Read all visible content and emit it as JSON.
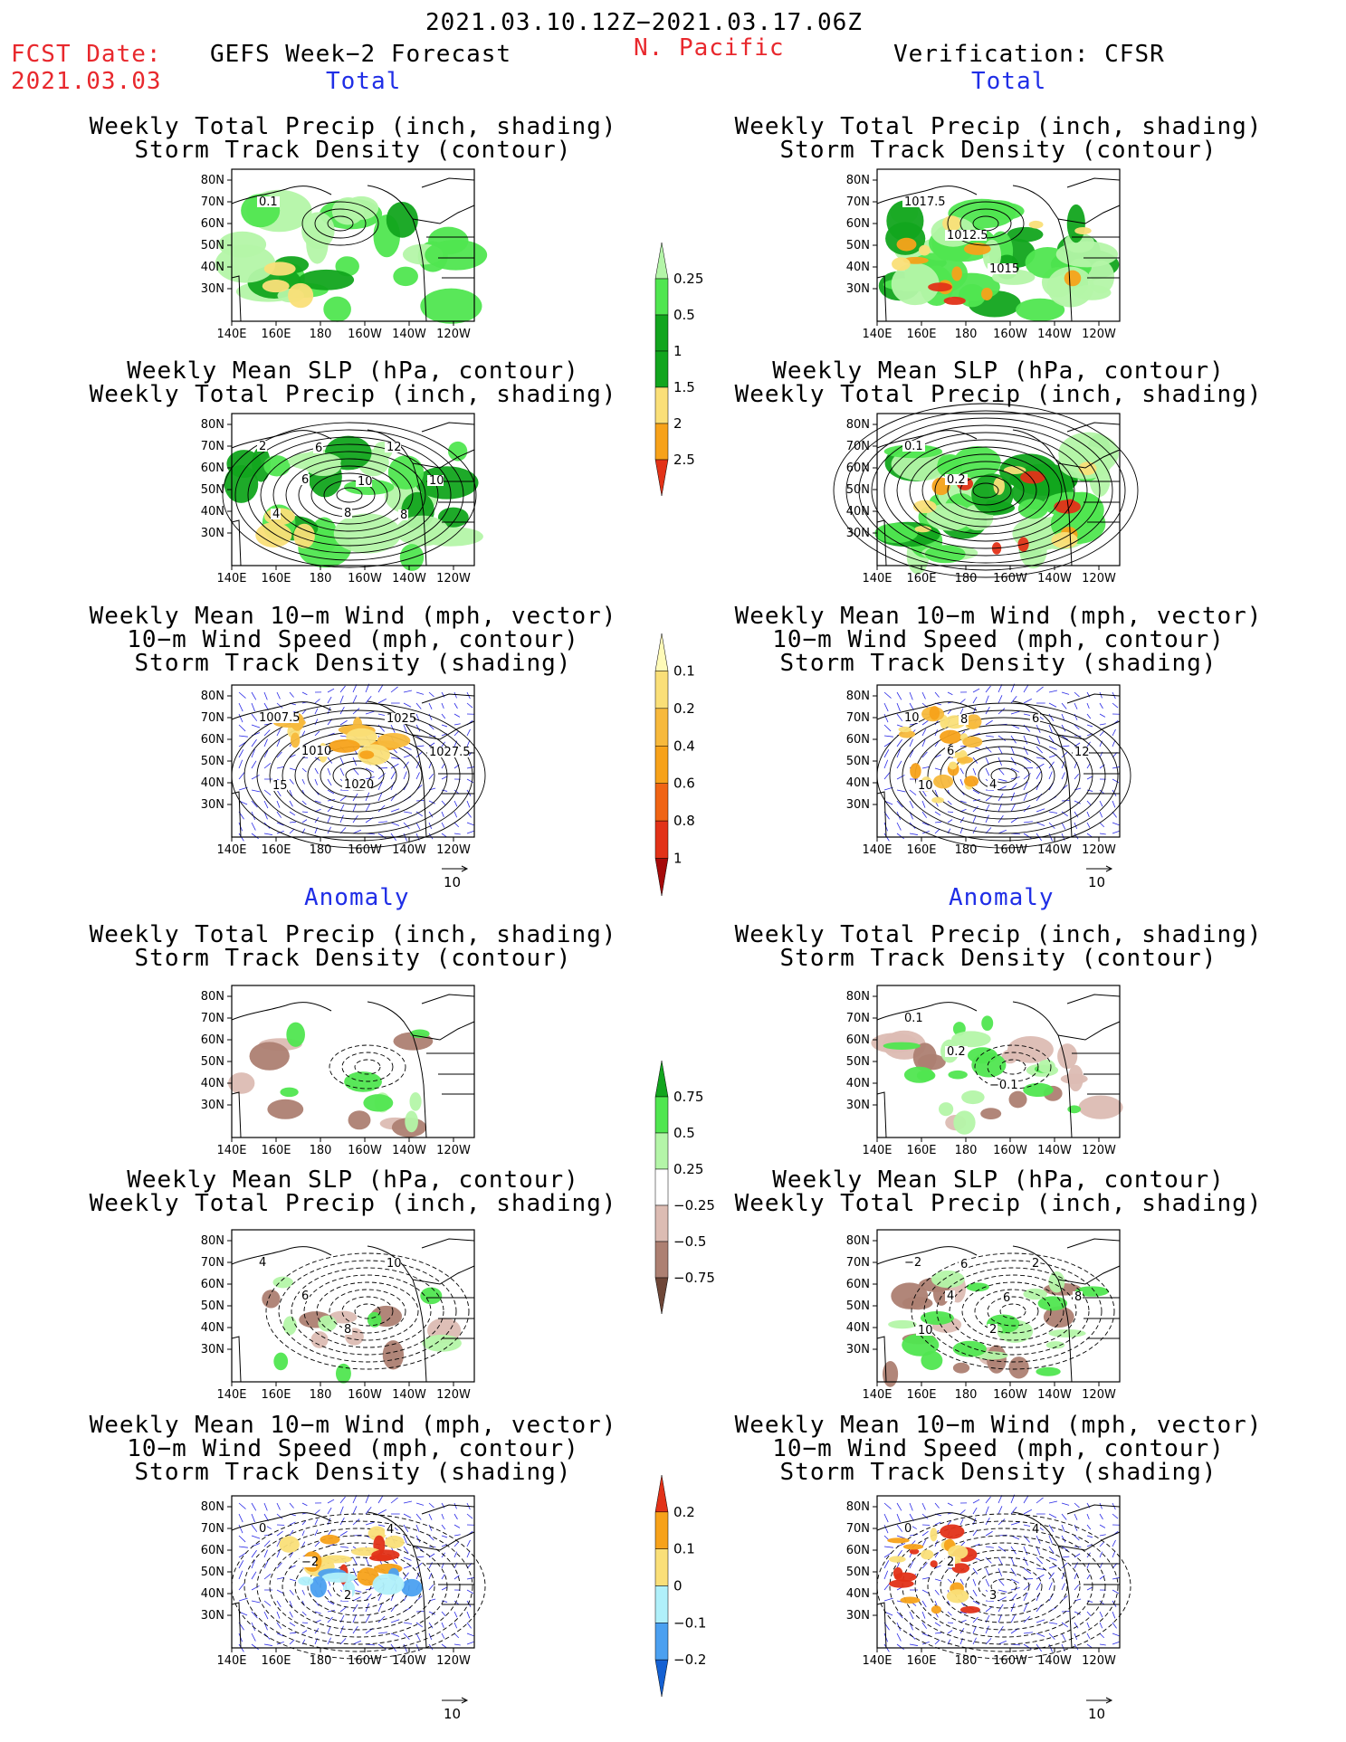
{
  "header": {
    "date_range": "2021.03.10.12Z−2021.03.17.06Z",
    "fcst_label": "FCST Date:",
    "fcst_date": "2021.03.03",
    "model": "GEFS Week−2 Forecast",
    "region": "N. Pacific",
    "verification": "Verification: CFSR"
  },
  "section_labels": {
    "total": "Total",
    "anomaly": "Anomaly"
  },
  "axes": {
    "lat_ticks": [
      "80N",
      "70N",
      "60N",
      "50N",
      "40N",
      "30N"
    ],
    "lon_ticks": [
      "140E",
      "160E",
      "180",
      "160W",
      "140W",
      "120W"
    ]
  },
  "panel_titles": {
    "precip_track": [
      "Weekly Total Precip (inch, shading)",
      "Storm Track Density (contour)"
    ],
    "slp_precip": [
      "Weekly Mean SLP (hPa, contour)",
      "Weekly Total Precip (inch, shading)"
    ],
    "wind_track": [
      "Weekly Mean 10−m Wind (mph, vector)",
      "10−m Wind Speed (mph, contour)",
      "Storm Track Density (shading)"
    ]
  },
  "vector_ref": "10",
  "colors": {
    "green_light": "#b4f5a8",
    "green_mid": "#50e650",
    "green_dark": "#12a51e",
    "yellow": "#fadf78",
    "orange": "#f7a21a",
    "red": "#e23218",
    "dark_red": "#a50a0a",
    "brown_light": "#dcbcb3",
    "brown_mid": "#ad8072",
    "brown_dark": "#6e4637",
    "blue_light": "#b0f0fa",
    "blue_mid": "#4ba0f0",
    "blue_dark": "#1460d2",
    "vector_blue": "#2828e6"
  },
  "chart_data": [
    {
      "type": "heatmap",
      "name": "colorbar_total_precip",
      "levels": [
        "0.25",
        "0.5",
        "1",
        "1.5",
        "2",
        "2.5"
      ],
      "colors": [
        "#b4f5a8",
        "#50e650",
        "#12a51e",
        "#12a51e",
        "#fadf78",
        "#f7a21a",
        "#e23218"
      ]
    },
    {
      "type": "heatmap",
      "name": "colorbar_total_track",
      "levels": [
        "0.1",
        "0.2",
        "0.4",
        "0.6",
        "0.8",
        "1"
      ],
      "colors": [
        "#fffbb8",
        "#fadf78",
        "#f7b93c",
        "#f7a21a",
        "#f06414",
        "#e23218",
        "#a50a0a"
      ]
    },
    {
      "type": "heatmap",
      "name": "colorbar_anom_precip",
      "levels": [
        "0.75",
        "0.5",
        "0.25",
        "−0.25",
        "−0.5",
        "−0.75"
      ],
      "colors": [
        "#12a51e",
        "#50e650",
        "#b4f5a8",
        "#ffffff",
        "#dcbcb3",
        "#ad8072",
        "#6e4637"
      ]
    },
    {
      "type": "heatmap",
      "name": "colorbar_anom_track",
      "levels": [
        "0.2",
        "0.1",
        "0",
        "−0.1",
        "−0.2"
      ],
      "colors": [
        "#e23218",
        "#f7a21a",
        "#fadf78",
        "#b0f0fa",
        "#4ba0f0",
        "#1460d2"
      ]
    }
  ],
  "contour_labels": {
    "p1": [
      "0.1"
    ],
    "p2": [
      "1017.5",
      "1012.5",
      "1015"
    ],
    "p3": [
      "2",
      "6",
      "8",
      "12",
      "10",
      "4",
      "6",
      "10",
      "8"
    ],
    "p4": [
      "0.1",
      "0.2"
    ],
    "p5": [
      "1007.5",
      "1010",
      "1020",
      "1025",
      "1027.5",
      "15"
    ],
    "p6": [
      "10",
      "6",
      "4",
      "6",
      "12",
      "10",
      "8"
    ],
    "p7": [],
    "p8": [
      "0.1",
      "0.2",
      "−0.1"
    ],
    "p9": [
      "4",
      "6",
      "8",
      "10"
    ],
    "p10": [
      "−2",
      "4",
      "2",
      "2",
      "8",
      "10",
      "6",
      "6"
    ],
    "p11": [
      "0",
      "−2",
      "2",
      "4"
    ],
    "p12": [
      "0",
      "2",
      "3",
      "4"
    ]
  }
}
